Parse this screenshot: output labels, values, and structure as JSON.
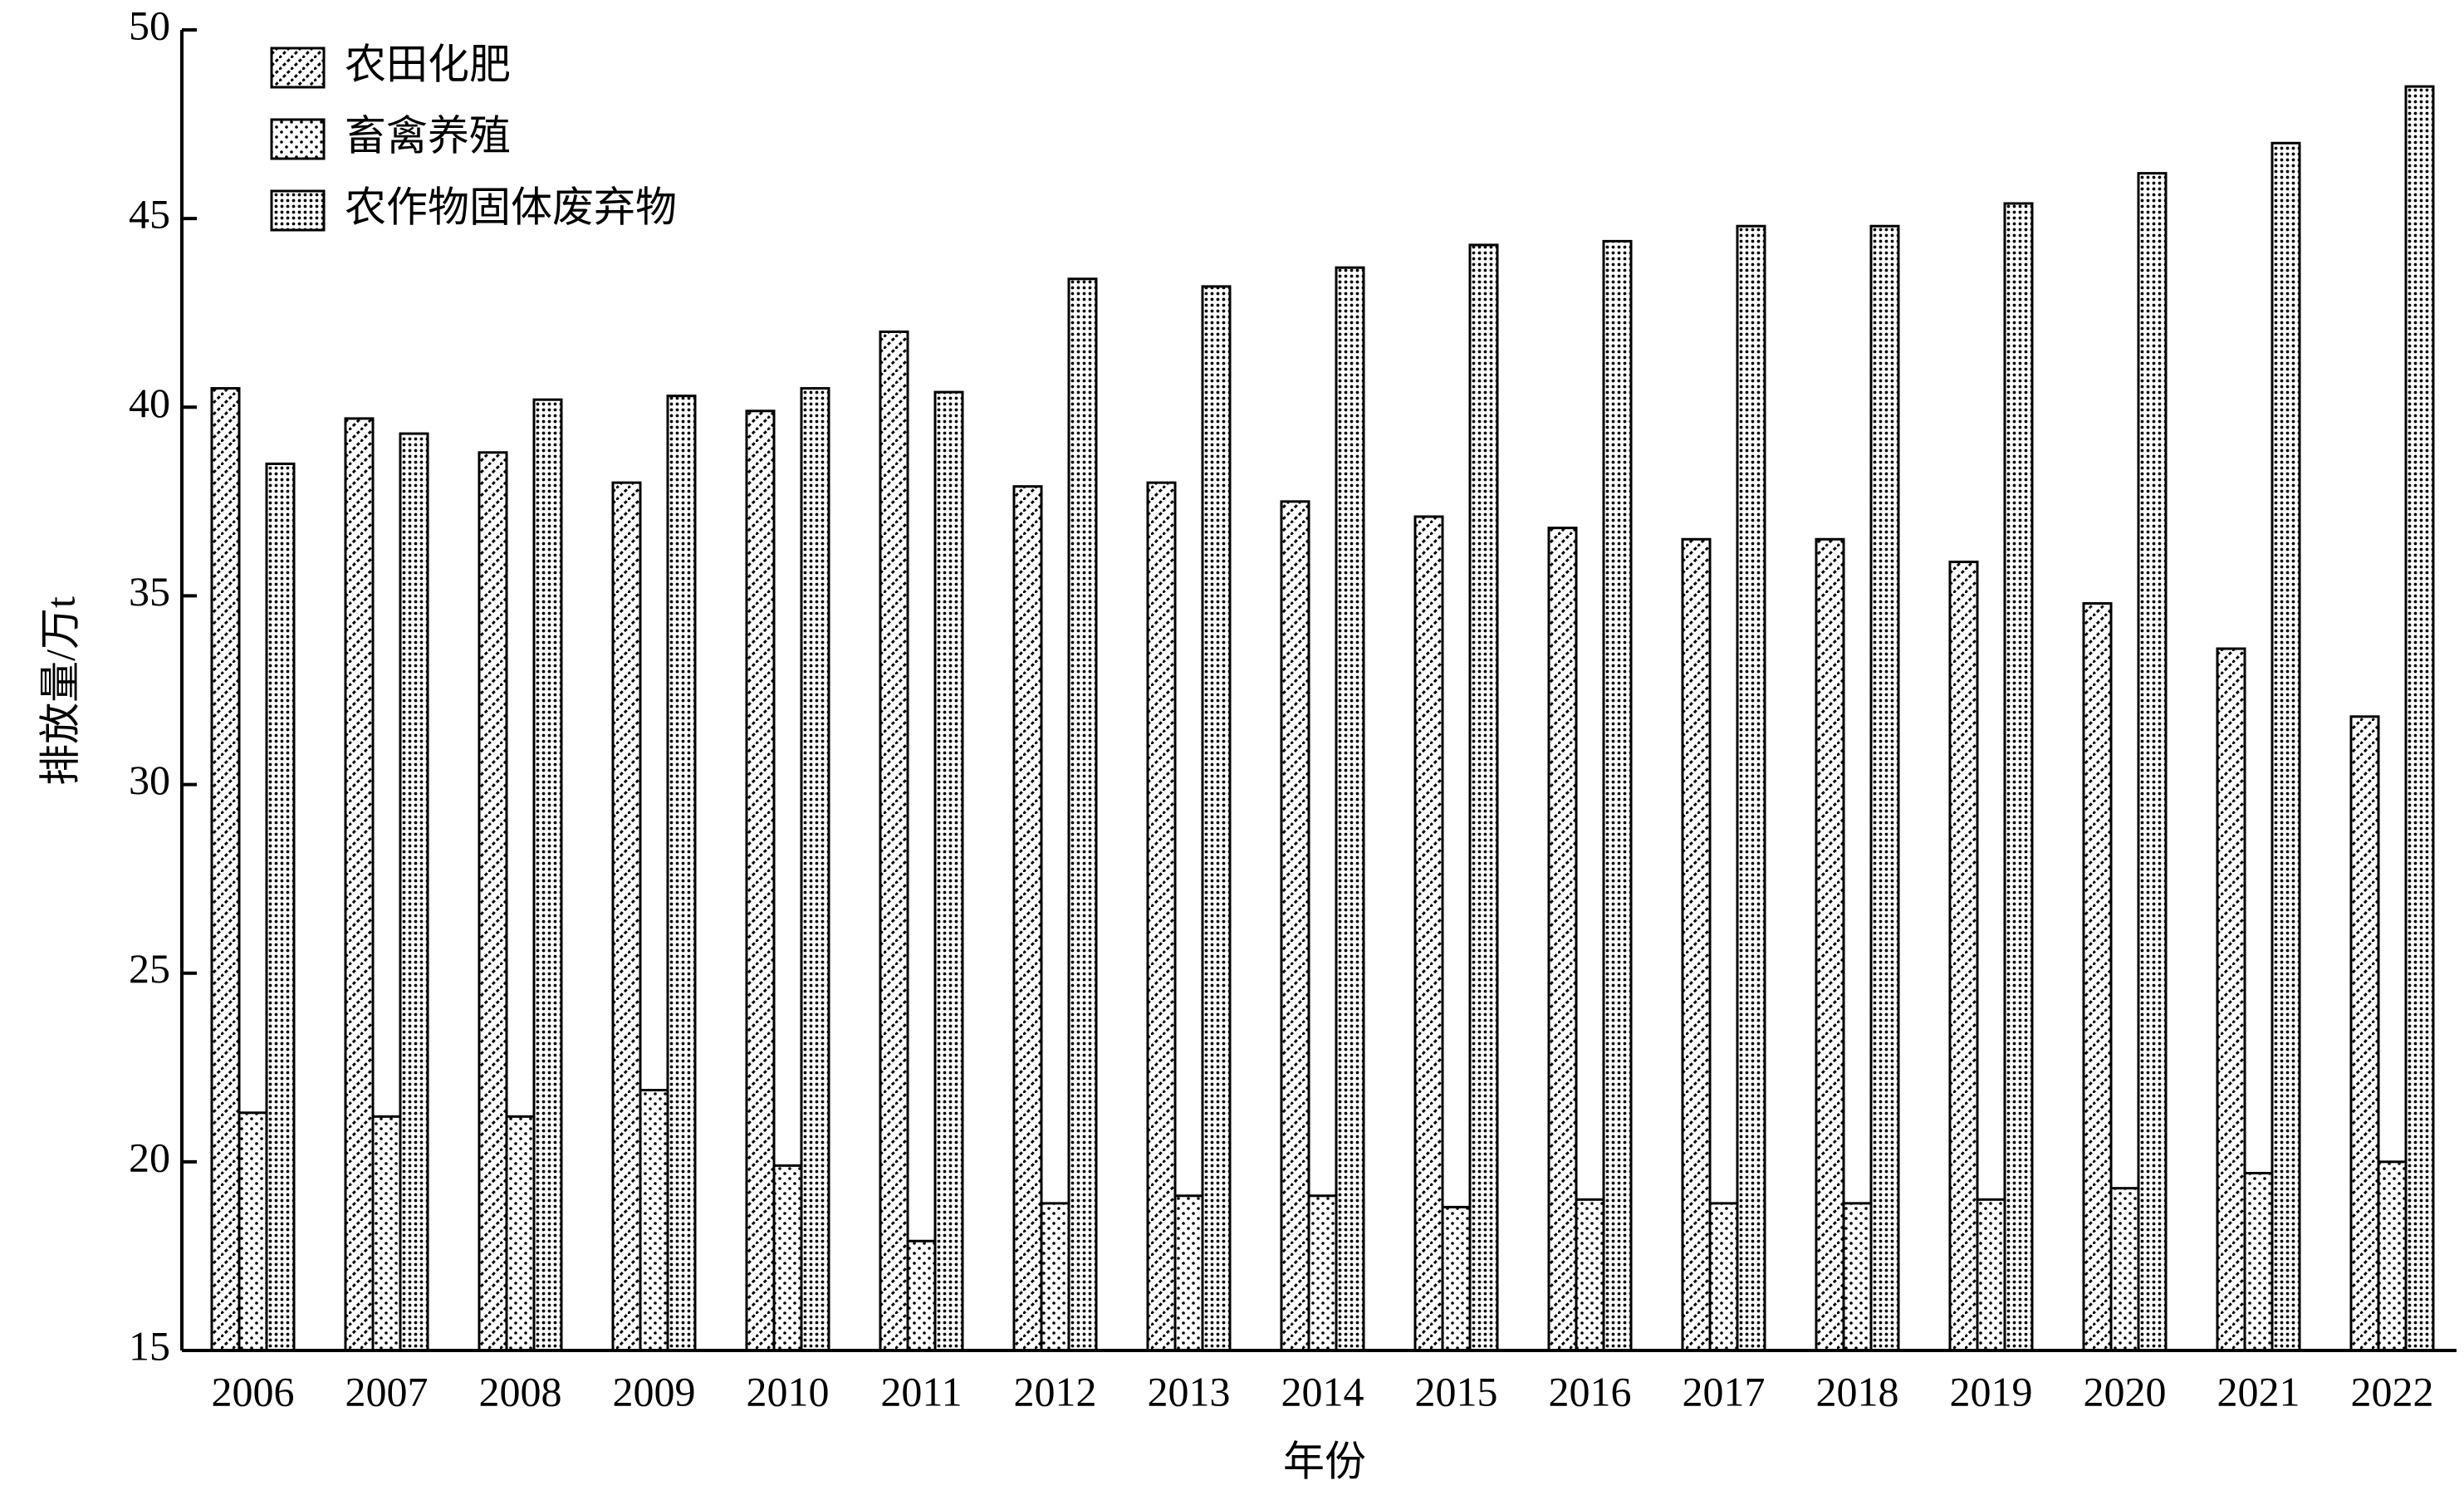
{
  "chart_data": {
    "type": "bar",
    "x_label": "年份",
    "y_label": "排放量/万t",
    "categories": [
      "2006",
      "2007",
      "2008",
      "2009",
      "2010",
      "2011",
      "2012",
      "2013",
      "2014",
      "2015",
      "2016",
      "2017",
      "2018",
      "2019",
      "2020",
      "2021",
      "2022"
    ],
    "series": [
      {
        "name": "农田化肥",
        "color": "#000000",
        "pattern": "diagonal",
        "values": [
          40.5,
          39.7,
          38.8,
          38.0,
          39.9,
          42.0,
          37.9,
          38.0,
          37.5,
          37.1,
          36.8,
          36.5,
          36.5,
          35.9,
          34.8,
          33.6,
          31.8
        ]
      },
      {
        "name": "畜禽养殖",
        "color": "#000000",
        "pattern": "sparse-dots",
        "values": [
          21.3,
          21.2,
          21.2,
          21.9,
          19.9,
          17.9,
          18.9,
          19.1,
          19.1,
          18.8,
          19.0,
          18.9,
          18.9,
          19.0,
          19.3,
          19.7,
          20.0
        ]
      },
      {
        "name": "农作物固体废弃物",
        "color": "#000000",
        "pattern": "dense-dots",
        "values": [
          38.5,
          39.3,
          40.2,
          40.3,
          40.5,
          40.4,
          43.4,
          43.2,
          43.7,
          44.3,
          44.4,
          44.8,
          44.8,
          45.4,
          46.2,
          47.0,
          48.5
        ]
      }
    ],
    "ylim": [
      15,
      50
    ],
    "yticks": [
      15,
      20,
      25,
      30,
      35,
      40,
      45,
      50
    ],
    "legend": "upper-left",
    "grid": false
  }
}
